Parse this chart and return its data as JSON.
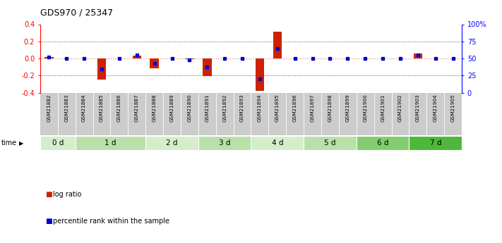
{
  "title": "GDS970 / 25347",
  "samples": [
    "GSM21882",
    "GSM21883",
    "GSM21884",
    "GSM21885",
    "GSM21886",
    "GSM21887",
    "GSM21888",
    "GSM21889",
    "GSM21890",
    "GSM21891",
    "GSM21892",
    "GSM21893",
    "GSM21894",
    "GSM21895",
    "GSM21896",
    "GSM21897",
    "GSM21898",
    "GSM21899",
    "GSM21900",
    "GSM21901",
    "GSM21902",
    "GSM21903",
    "GSM21904",
    "GSM21905"
  ],
  "log_ratio": [
    0.02,
    0.0,
    0.0,
    -0.245,
    0.0,
    0.03,
    -0.115,
    0.0,
    -0.01,
    -0.205,
    0.0,
    0.0,
    -0.38,
    0.315,
    0.0,
    0.0,
    0.0,
    0.0,
    0.0,
    0.0,
    0.0,
    0.055,
    0.0,
    0.0
  ],
  "percentile_rank": [
    52,
    50,
    50,
    35,
    50,
    55,
    43,
    50,
    48,
    38,
    50,
    50,
    20,
    65,
    50,
    50,
    50,
    50,
    50,
    50,
    50,
    55,
    50,
    50
  ],
  "time_groups": [
    {
      "label": "0 d",
      "start": 0,
      "end": 2,
      "color": "#d6edcc"
    },
    {
      "label": "1 d",
      "start": 2,
      "end": 6,
      "color": "#b8e0a8"
    },
    {
      "label": "2 d",
      "start": 6,
      "end": 9,
      "color": "#d6edcc"
    },
    {
      "label": "3 d",
      "start": 9,
      "end": 12,
      "color": "#b8e0a8"
    },
    {
      "label": "4 d",
      "start": 12,
      "end": 15,
      "color": "#d6edcc"
    },
    {
      "label": "5 d",
      "start": 15,
      "end": 18,
      "color": "#b8e0a8"
    },
    {
      "label": "6 d",
      "start": 18,
      "end": 21,
      "color": "#82ce6e"
    },
    {
      "label": "7 d",
      "start": 21,
      "end": 24,
      "color": "#4db83a"
    }
  ],
  "ylim": [
    -0.4,
    0.4
  ],
  "yticks_left": [
    -0.4,
    -0.2,
    0.0,
    0.2,
    0.4
  ],
  "yticks_right": [
    0,
    25,
    50,
    75,
    100
  ],
  "bar_color": "#cc2200",
  "rank_color": "#0000cc",
  "zero_line_color": "#ee8888",
  "dotted_line_color": "#555555",
  "background_color": "#ffffff",
  "sample_bg_color": "#cccccc",
  "legend_log_ratio": "log ratio",
  "legend_percentile": "percentile rank within the sample"
}
